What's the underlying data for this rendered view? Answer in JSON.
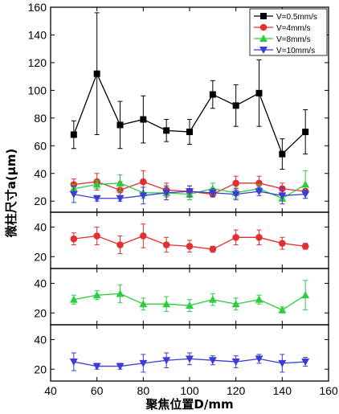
{
  "chart_data": {
    "type": "line",
    "xlabel": "聚焦位置D/mm",
    "ylabel": "微柱尺寸a(μm)",
    "xlim": [
      40,
      160
    ],
    "x_ticks": [
      "40",
      "60",
      "80",
      "100",
      "120",
      "140",
      "160"
    ],
    "legend_position": "top-right",
    "x": [
      50,
      60,
      70,
      80,
      90,
      100,
      110,
      120,
      130,
      140,
      150
    ],
    "series": [
      {
        "name": "V=0.5mm/s",
        "color": "#000000",
        "marker": "square",
        "values": [
          68,
          112,
          75,
          79,
          71,
          70,
          97,
          89,
          98,
          54,
          70
        ],
        "errors": [
          10,
          44,
          17,
          17,
          8,
          9,
          10,
          15,
          24,
          11,
          16
        ]
      },
      {
        "name": "V=4mm/s",
        "color": "#e03030",
        "marker": "circle",
        "values": [
          32,
          34,
          28,
          34,
          28,
          27,
          25,
          33,
          33,
          29,
          27
        ],
        "errors": [
          4,
          6,
          6,
          8,
          5,
          4,
          2,
          5,
          5,
          4,
          2
        ]
      },
      {
        "name": "V=8mm/s",
        "color": "#2ecc40",
        "marker": "triangle-up",
        "values": [
          29,
          32,
          33,
          26,
          26,
          25,
          29,
          26,
          29,
          22,
          32
        ],
        "errors": [
          3,
          3,
          6,
          4,
          5,
          4,
          4,
          4,
          3,
          2,
          10
        ]
      },
      {
        "name": "V=10mm/s",
        "color": "#3b3bd6",
        "marker": "triangle-down",
        "values": [
          25,
          22,
          22,
          24,
          26,
          27,
          26,
          25,
          27,
          24,
          25
        ],
        "errors": [
          6,
          2,
          2,
          6,
          5,
          4,
          3,
          4,
          3,
          6,
          3
        ]
      }
    ],
    "panels": [
      {
        "series": [
          0,
          1,
          2,
          3
        ],
        "ylim": [
          12,
          160
        ],
        "y_ticks": [
          "20",
          "40",
          "60",
          "80",
          "100",
          "120",
          "140",
          "160"
        ]
      },
      {
        "series": [
          1
        ],
        "ylim": [
          12,
          50
        ],
        "y_ticks": [
          "20",
          "40"
        ]
      },
      {
        "series": [
          2
        ],
        "ylim": [
          12,
          50
        ],
        "y_ticks": [
          "20",
          "40"
        ]
      },
      {
        "series": [
          3
        ],
        "ylim": [
          12,
          50
        ],
        "y_ticks": [
          "20",
          "40"
        ]
      }
    ]
  }
}
